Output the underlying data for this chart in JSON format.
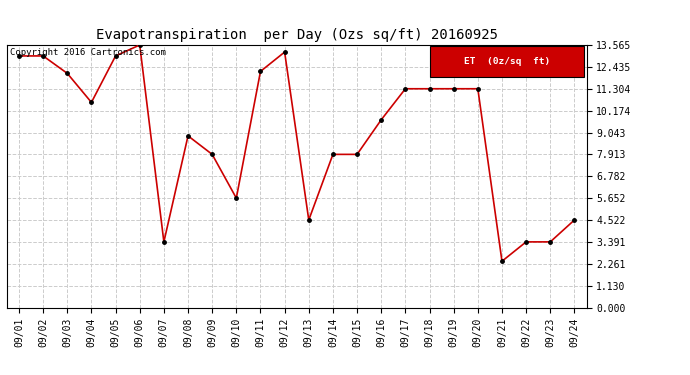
{
  "title": "Evapotranspiration  per Day (Ozs sq/ft) 20160925",
  "copyright": "Copyright 2016 Cartronics.com",
  "legend_label": "ET  (0z/sq  ft)",
  "legend_bg": "#cc0000",
  "legend_text_color": "#ffffff",
  "x_labels": [
    "09/01",
    "09/02",
    "09/03",
    "09/04",
    "09/05",
    "09/06",
    "09/07",
    "09/08",
    "09/09",
    "09/10",
    "09/11",
    "09/12",
    "09/13",
    "09/14",
    "09/15",
    "09/16",
    "09/17",
    "09/18",
    "09/19",
    "09/20",
    "09/21",
    "09/22",
    "09/23",
    "09/24"
  ],
  "y_values": [
    13.0,
    13.0,
    12.1,
    10.6,
    13.0,
    13.565,
    3.391,
    8.87,
    7.913,
    5.652,
    12.2,
    13.2,
    4.522,
    7.913,
    7.913,
    9.7,
    11.304,
    11.304,
    11.304,
    11.304,
    2.391,
    3.391,
    3.391,
    4.522
  ],
  "line_color": "#cc0000",
  "marker_color": "#000000",
  "marker_size": 2.5,
  "line_width": 1.2,
  "y_ticks": [
    0.0,
    1.13,
    2.261,
    3.391,
    4.522,
    5.652,
    6.782,
    7.913,
    9.043,
    10.174,
    11.304,
    12.435,
    13.565
  ],
  "ylim": [
    0.0,
    13.565
  ],
  "grid_color": "#cccccc",
  "grid_style": "--",
  "bg_color": "#ffffff",
  "title_fontsize": 10,
  "tick_fontsize": 7,
  "copyright_fontsize": 6.5
}
